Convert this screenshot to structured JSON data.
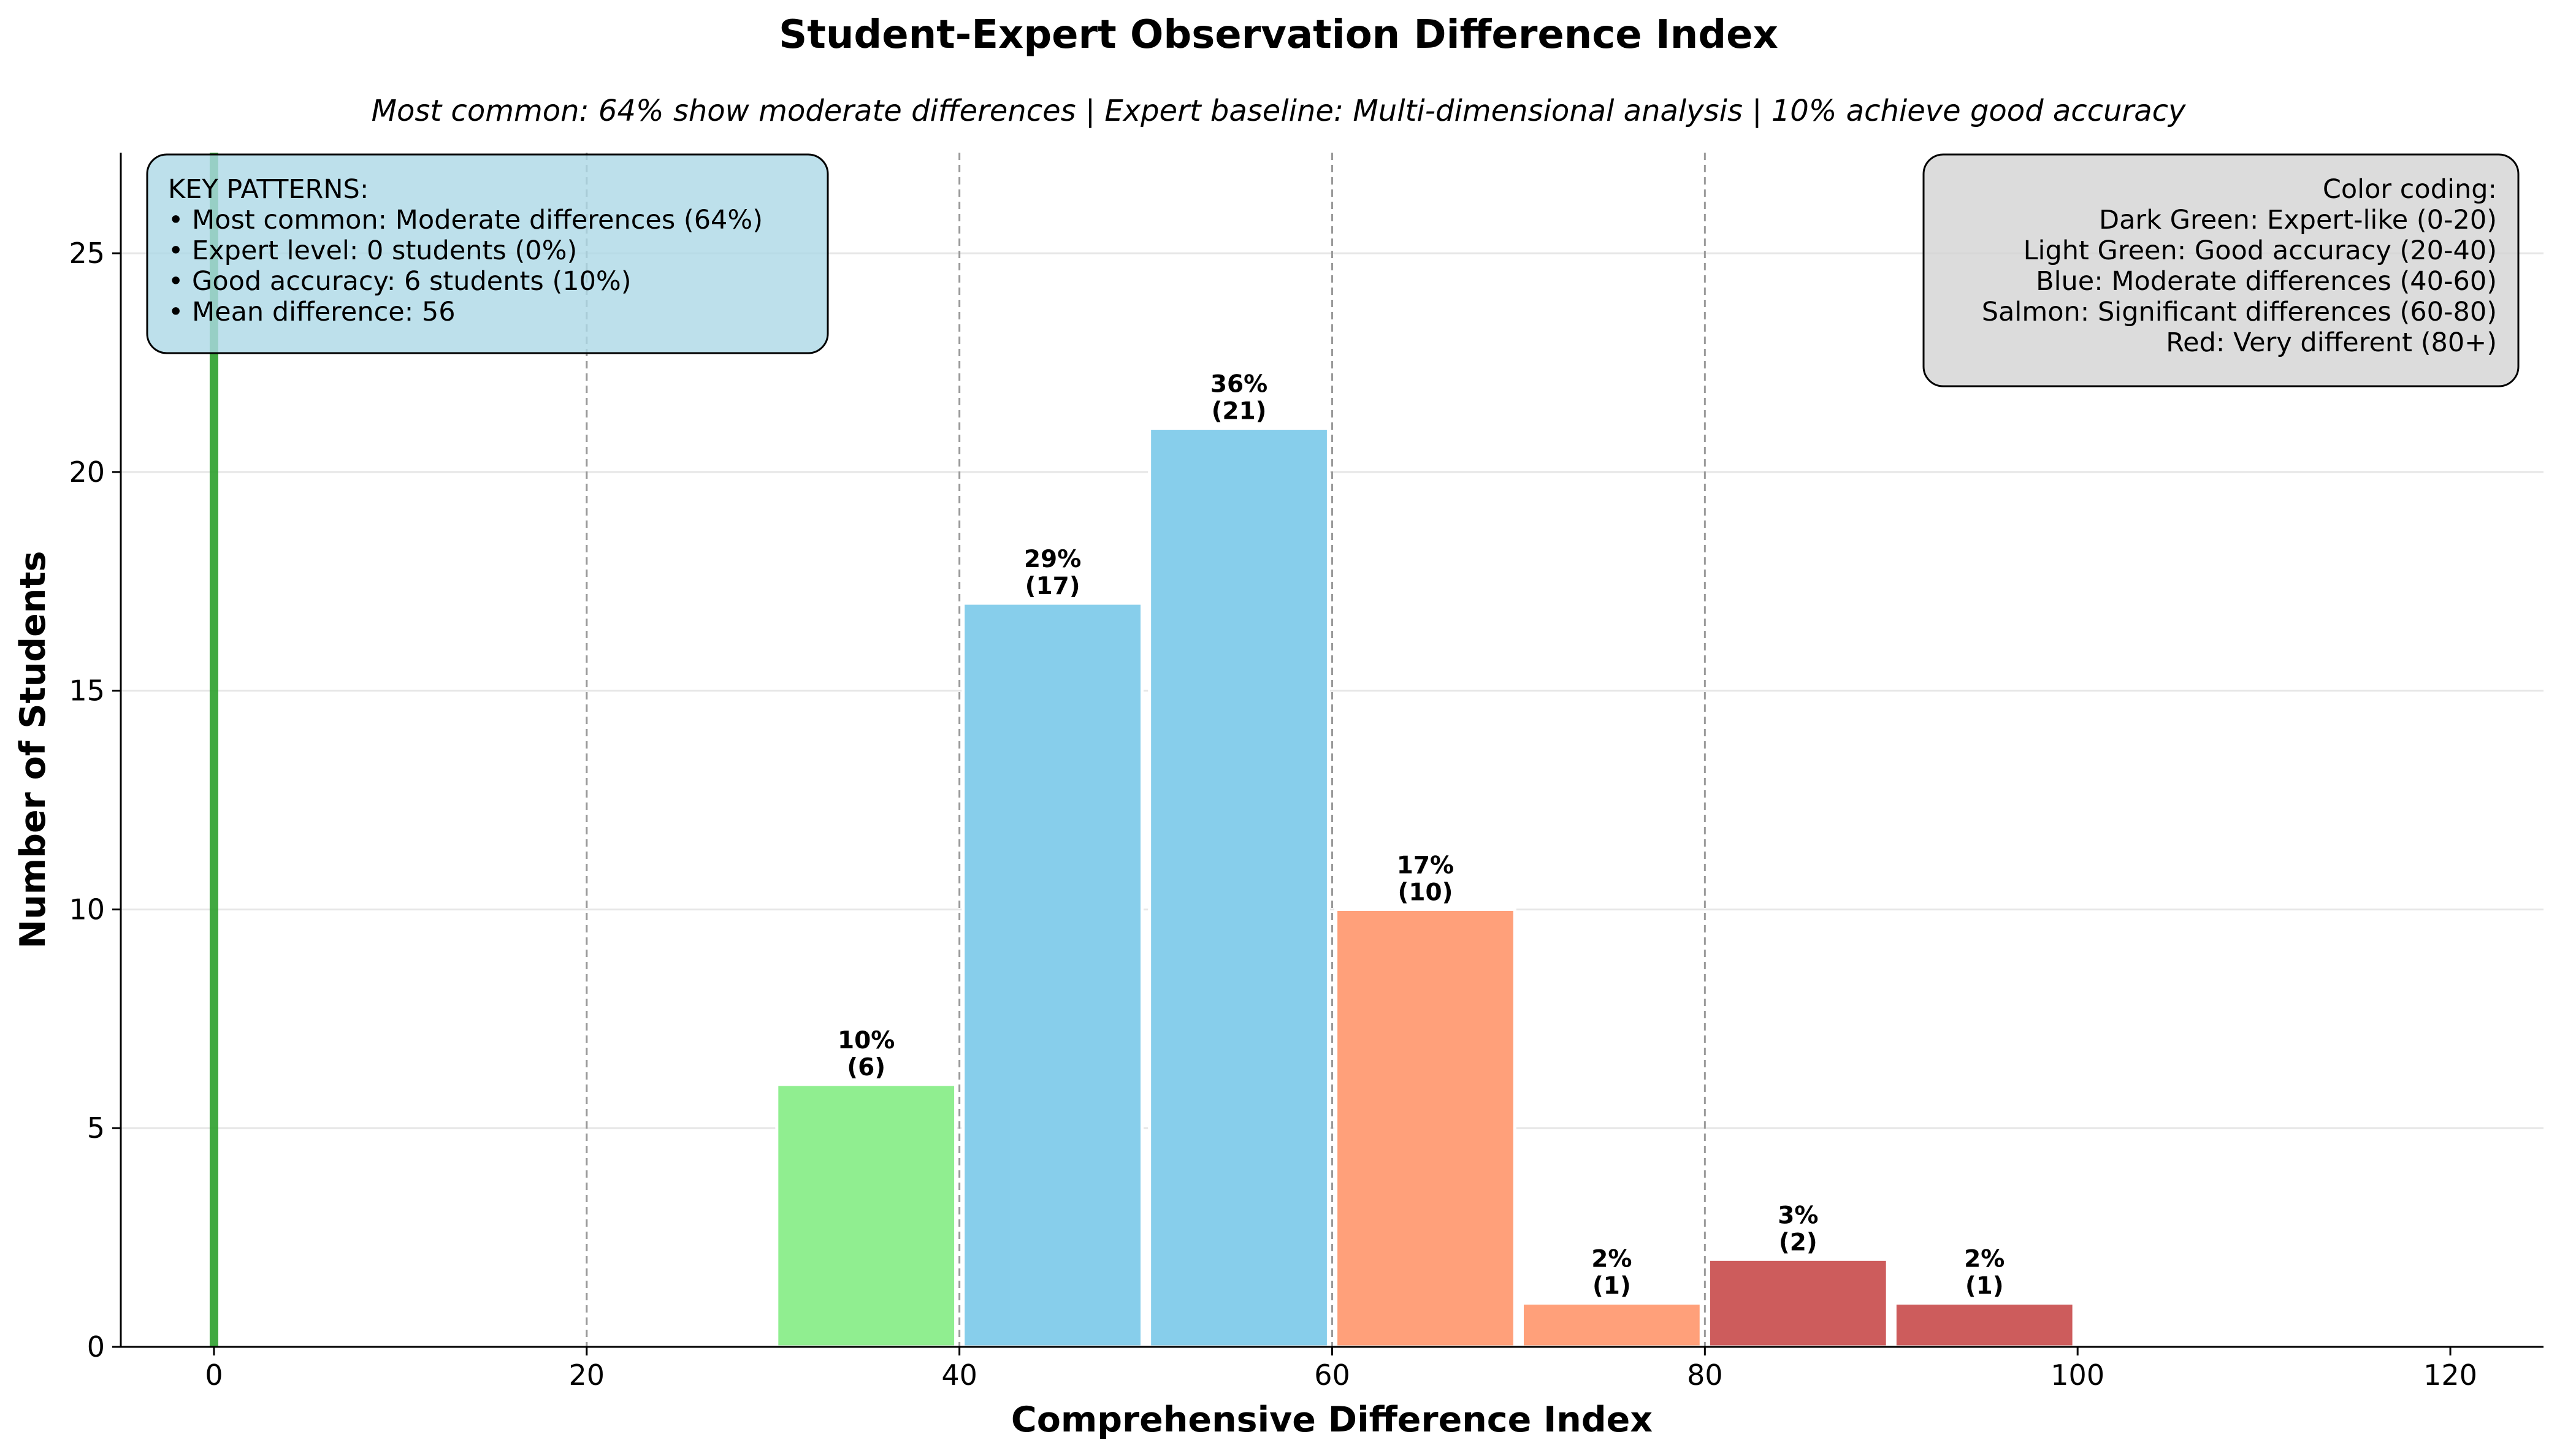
{
  "chart_data": {
    "type": "bar",
    "title": "Student-Expert Observation Difference Index",
    "subtitle": "Most common: 64% show moderate differences | Expert baseline: Multi-dimensional analysis | 10% achieve good accuracy",
    "xlabel": "Comprehensive Difference Index",
    "ylabel": "Number of Students",
    "xlim": [
      -5,
      125
    ],
    "ylim": [
      0,
      27.3
    ],
    "xticks": [
      0,
      20,
      40,
      60,
      80,
      100,
      120
    ],
    "yticks": [
      0,
      5,
      10,
      15,
      20,
      25
    ],
    "grid": "horizontal",
    "reference_lines": [
      20,
      40,
      60,
      80
    ],
    "expert_line": {
      "x": 0,
      "color": "#2ca02c"
    },
    "bars": [
      {
        "start": 30,
        "end": 40,
        "value": 6,
        "pct_label": "10%",
        "count_label": "(6)",
        "color": "#90ee90"
      },
      {
        "start": 40,
        "end": 50,
        "value": 17,
        "pct_label": "29%",
        "count_label": "(17)",
        "color": "#87ceeb"
      },
      {
        "start": 50,
        "end": 60,
        "value": 21,
        "pct_label": "36%",
        "count_label": "(21)",
        "color": "#87ceeb"
      },
      {
        "start": 60,
        "end": 70,
        "value": 10,
        "pct_label": "17%",
        "count_label": "(10)",
        "color": "#ffa07a"
      },
      {
        "start": 70,
        "end": 80,
        "value": 1,
        "pct_label": "2%",
        "count_label": "(1)",
        "color": "#ffa07a"
      },
      {
        "start": 80,
        "end": 90,
        "value": 2,
        "pct_label": "3%",
        "count_label": "(2)",
        "color": "#cd5c5c"
      },
      {
        "start": 90,
        "end": 100,
        "value": 1,
        "pct_label": "2%",
        "count_label": "(1)",
        "color": "#cd5c5c"
      }
    ],
    "key_patterns": {
      "lines": [
        "KEY PATTERNS:",
        "• Most common: Moderate differences (64%)",
        "• Expert level: 0 students (0%)",
        "• Good accuracy: 6 students (10%)",
        "• Mean difference: 56"
      ],
      "position": "top-left",
      "background": "#add8e6"
    },
    "color_coding": {
      "lines": [
        "Color coding:",
        "Dark Green: Expert-like (0-20)",
        "Light Green: Good accuracy (20-40)",
        "Blue: Moderate differences (40-60)",
        "Salmon: Significant differences (60-80)",
        "Red: Very different (80+)"
      ],
      "position": "top-right",
      "background": "#d3d3d3"
    }
  }
}
